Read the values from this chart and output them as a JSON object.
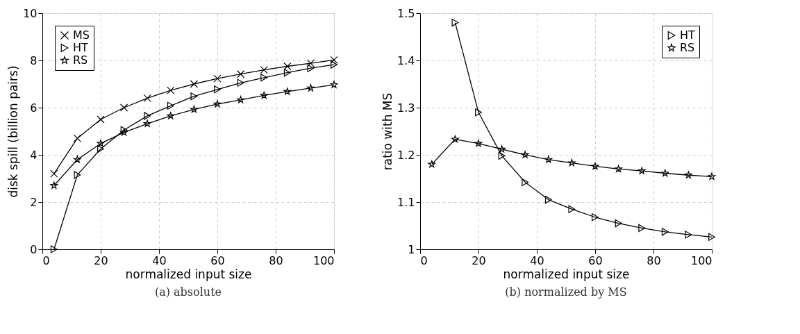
{
  "chart_data": [
    {
      "type": "line",
      "xlabel": "normalized input size",
      "ylabel": "disk spill (billion pairs)",
      "x": [
        4,
        12,
        20,
        28,
        36,
        44,
        52,
        60,
        68,
        76,
        84,
        92,
        100
      ],
      "series": [
        {
          "name": "MS",
          "color": "#000000",
          "marker": "cross",
          "values": [
            3.2,
            4.7,
            5.5,
            6.0,
            6.4,
            6.73,
            7.0,
            7.23,
            7.42,
            7.6,
            7.75,
            7.88,
            8.02
          ]
        },
        {
          "name": "HT",
          "color": "#000000",
          "marker": "triangle",
          "values": [
            0,
            3.15,
            4.25,
            5.05,
            5.65,
            6.08,
            6.48,
            6.77,
            7.05,
            7.27,
            7.48,
            7.67,
            7.82
          ]
        },
        {
          "name": "RS",
          "color": "#000000",
          "marker": "star",
          "values": [
            2.7,
            3.8,
            4.48,
            4.95,
            5.32,
            5.65,
            5.92,
            6.15,
            6.33,
            6.52,
            6.68,
            6.83,
            6.97
          ]
        }
      ],
      "xlim": [
        0,
        100
      ],
      "xticks": [
        0,
        20,
        40,
        60,
        80,
        100
      ],
      "ylim": [
        0,
        10
      ],
      "yticks": [
        0,
        2,
        4,
        6,
        8,
        10
      ],
      "grid": true,
      "legend": "top left",
      "line_style": "solid",
      "annotations": [
        "(a) absolute"
      ]
    },
    {
      "type": "line",
      "xlabel": "normalized input size",
      "ylabel": "ratio with MS",
      "x": [
        4,
        12,
        20,
        28,
        36,
        44,
        52,
        60,
        68,
        76,
        84,
        92,
        100
      ],
      "series": [
        {
          "name": "HT",
          "color": "#000000",
          "marker": "triangle",
          "values": [
            null,
            1.48,
            1.29,
            1.198,
            1.142,
            1.105,
            1.085,
            1.068,
            1.055,
            1.045,
            1.037,
            1.031,
            1.026
          ]
        },
        {
          "name": "RS",
          "color": "#000000",
          "marker": "star",
          "values": [
            1.18,
            1.233,
            1.224,
            1.212,
            1.2,
            1.19,
            1.183,
            1.176,
            1.17,
            1.166,
            1.161,
            1.157,
            1.154
          ]
        }
      ],
      "xlim": [
        0,
        100
      ],
      "xticks": [
        0,
        20,
        40,
        60,
        80,
        100
      ],
      "ylim": [
        1,
        1.5
      ],
      "yticks": [
        1,
        1.1,
        1.2,
        1.3,
        1.4,
        1.5
      ],
      "grid": true,
      "legend": "top right",
      "line_style": "solid",
      "annotations": [
        "(b) normalized by MS"
      ]
    }
  ]
}
